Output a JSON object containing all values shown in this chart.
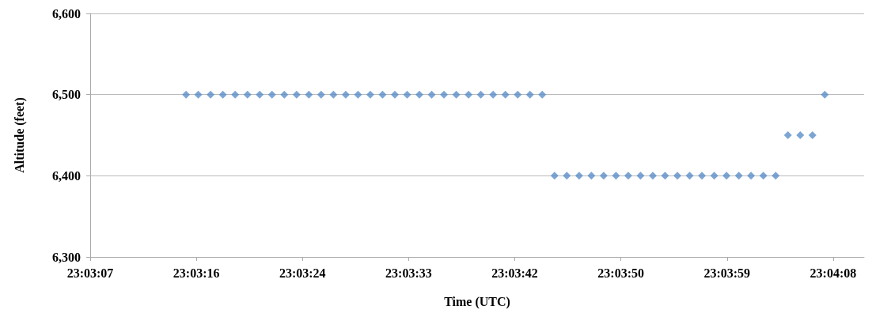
{
  "chart_data": {
    "type": "scatter",
    "xlabel": "Time (UTC)",
    "ylabel": "Altitude (feet)",
    "x": [
      23.054167,
      23.054444,
      23.054722,
      23.055,
      23.055278,
      23.055556,
      23.055833,
      23.056111,
      23.056389,
      23.056667,
      23.056944,
      23.057222,
      23.0575,
      23.057778,
      23.058056,
      23.058333,
      23.058611,
      23.058889,
      23.059167,
      23.059444,
      23.059722,
      23.06,
      23.060278,
      23.060556,
      23.060833,
      23.061111,
      23.061389,
      23.061667,
      23.061944,
      23.062222,
      23.0625,
      23.062778,
      23.063056,
      23.063333,
      23.063611,
      23.063889,
      23.064167,
      23.064444,
      23.064722,
      23.065,
      23.065278,
      23.065556,
      23.065833,
      23.066111,
      23.066389,
      23.066667,
      23.066944,
      23.067222,
      23.0675,
      23.067778,
      23.068056,
      23.068333,
      23.068611
    ],
    "series": [
      {
        "color": "#5b8fc9",
        "values": [
          6500,
          6500,
          6500,
          6500,
          6500,
          6500,
          6500,
          6500,
          6500,
          6500,
          6500,
          6500,
          6500,
          6500,
          6500,
          6500,
          6500,
          6500,
          6500,
          6500,
          6500,
          6500,
          6500,
          6500,
          6500,
          6500,
          6500,
          6500,
          6500,
          6500,
          6400,
          6400,
          6400,
          6400,
          6400,
          6400,
          6400,
          6400,
          6400,
          6400,
          6400,
          6400,
          6400,
          6400,
          6400,
          6400,
          6400,
          6400,
          6400,
          6450,
          6450,
          6450,
          6500
        ]
      }
    ],
    "xlim": [
      23.052,
      23.0695
    ],
    "xticks": [
      {
        "value": 23.052,
        "label": "23:03:07"
      },
      {
        "value": 23.0544,
        "label": "23:03:16"
      },
      {
        "value": 23.0568,
        "label": "23:03:24"
      },
      {
        "value": 23.0592,
        "label": "23:03:33"
      },
      {
        "value": 23.0616,
        "label": "23:03:42"
      },
      {
        "value": 23.064,
        "label": "23:03:50"
      },
      {
        "value": 23.0664,
        "label": "23:03:59"
      },
      {
        "value": 23.0688,
        "label": "23:04:08"
      }
    ],
    "ylim": [
      6300,
      6600
    ],
    "yticks": [
      {
        "value": 6300,
        "label": "6,300"
      },
      {
        "value": 6400,
        "label": "6,400"
      },
      {
        "value": 6500,
        "label": "6,500"
      },
      {
        "value": 6600,
        "label": "6,600"
      }
    ],
    "grid": "y",
    "marker": "diamond"
  }
}
